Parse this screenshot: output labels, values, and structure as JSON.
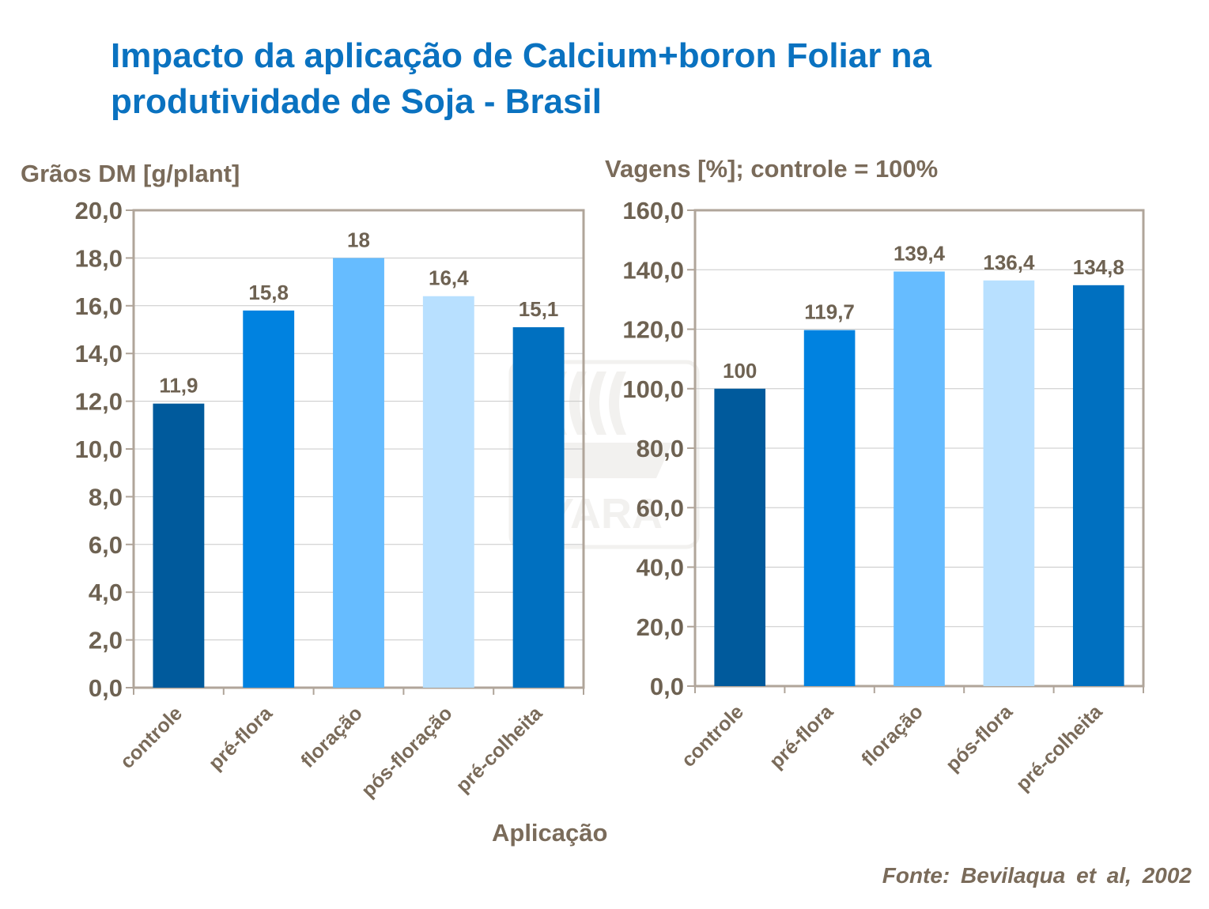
{
  "title": {
    "line1": "Impacto da aplicação de Calcium+boron Foliar na",
    "line2": "produtividade de Soja - Brasil"
  },
  "colors": {
    "title": "#0a72c0",
    "text": "#7a6b5a",
    "frame": "#b0a59a",
    "bar_palette": [
      "#005a9c",
      "#0082e0",
      "#66bcff",
      "#b8e0ff",
      "#0070c0"
    ]
  },
  "watermark": {
    "logo": "yara-viking-ship-logo",
    "text": "YARA"
  },
  "chart_data": [
    {
      "type": "bar",
      "ylabel": "Grãos DM [g/plant]",
      "xlabel": "Aplicação",
      "categories": [
        "controle",
        "pré-flora",
        "floração",
        "pós-floração",
        "pré-colheita"
      ],
      "values": [
        11.9,
        15.8,
        18,
        16.4,
        15.1
      ],
      "data_labels": [
        "11,9",
        "15,8",
        "18",
        "16,4",
        "15,1"
      ],
      "ylim": [
        0,
        20
      ],
      "yticks": [
        "0,0",
        "2,0",
        "4,0",
        "6,0",
        "8,0",
        "10,0",
        "12,0",
        "14,0",
        "16,0",
        "18,0",
        "20,0"
      ],
      "grid": true,
      "legend": "none"
    },
    {
      "type": "bar",
      "ylabel": "Vagens [%]; controle = 100%",
      "categories": [
        "controle",
        "pré-flora",
        "floração",
        "pós-flora",
        "pré-colheita"
      ],
      "values": [
        100,
        119.7,
        139.4,
        136.4,
        134.8
      ],
      "data_labels": [
        "100",
        "119,7",
        "139,4",
        "136,4",
        "134,8"
      ],
      "ylim": [
        0,
        160
      ],
      "yticks": [
        "0,0",
        "20,0",
        "40,0",
        "60,0",
        "80,0",
        "100,0",
        "120,0",
        "140,0",
        "160,0"
      ],
      "grid": true,
      "legend": "none"
    }
  ],
  "source": "Fonte: Bevilaqua et al, 2002"
}
